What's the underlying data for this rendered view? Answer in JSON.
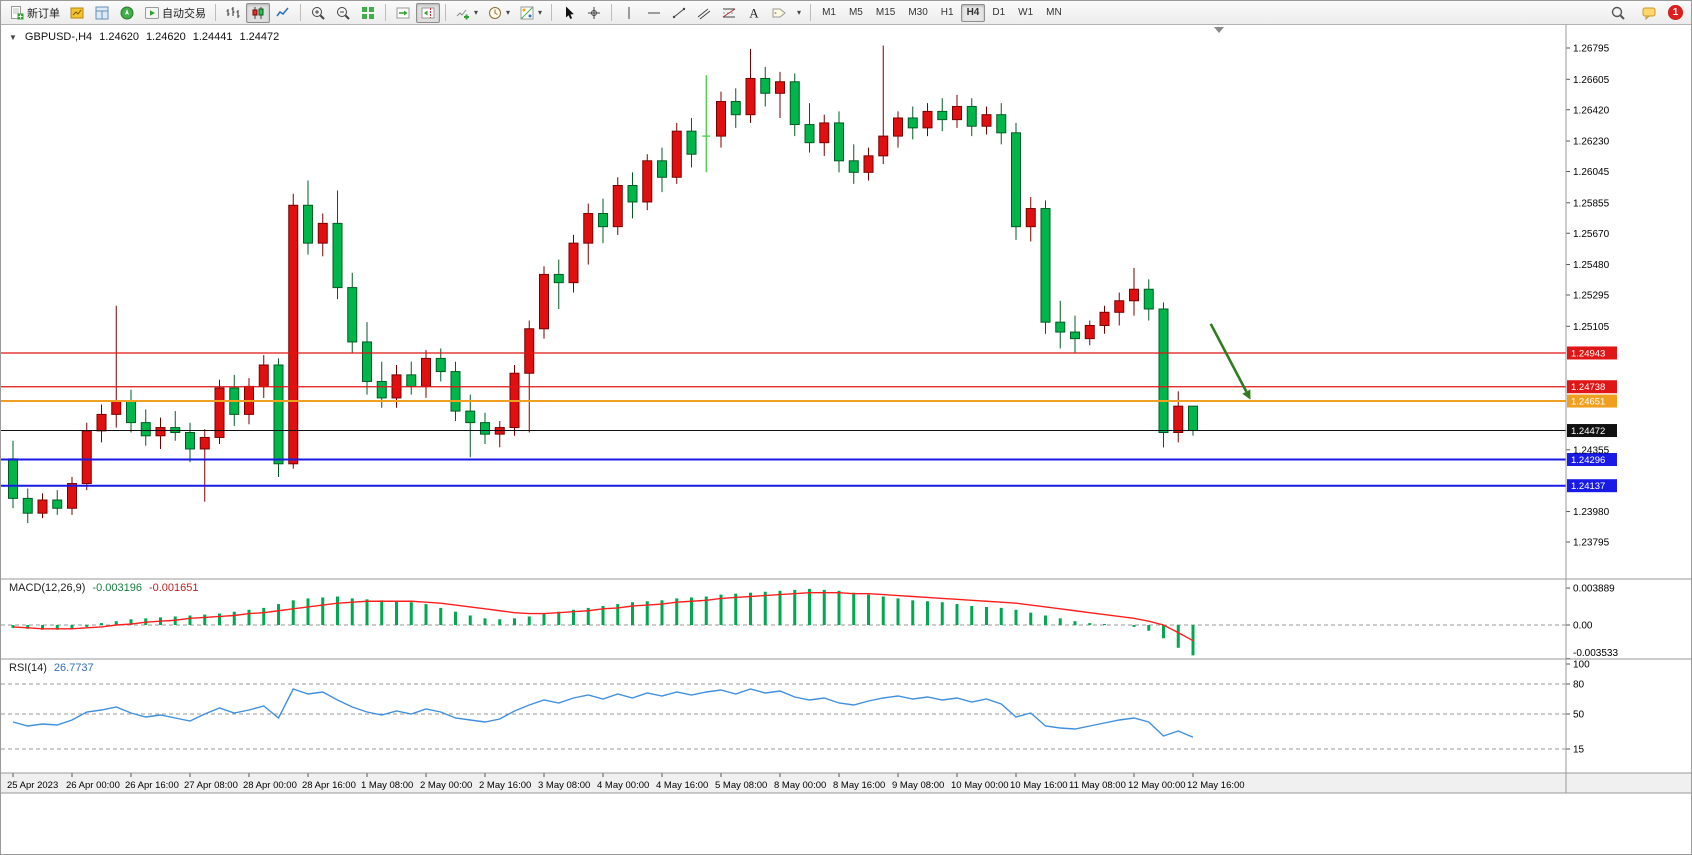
{
  "window": {
    "notification_count": "1"
  },
  "toolbar": {
    "groups": [
      {
        "items": [
          {
            "name": "new-order-button",
            "icon": "new-order",
            "label": "新订单"
          },
          {
            "name": "market-watch-button",
            "icon": "market-watch"
          },
          {
            "name": "data-window-button",
            "icon": "data-window"
          },
          {
            "name": "navigator-button",
            "icon": "navigator"
          },
          {
            "name": "autotrading-button",
            "icon": "autotrading",
            "label": "自动交易"
          }
        ]
      },
      {
        "items": [
          {
            "name": "bar-chart-button",
            "icon": "bar-chart"
          },
          {
            "name": "candlestick-chart-button",
            "icon": "candles",
            "active": true
          },
          {
            "name": "line-chart-button",
            "icon": "line-chart"
          }
        ]
      },
      {
        "items": [
          {
            "name": "zoom-in-button",
            "icon": "zoom-in"
          },
          {
            "name": "zoom-out-button",
            "icon": "zoom-out"
          },
          {
            "name": "tile-windows-button",
            "icon": "tile-windows"
          }
        ]
      },
      {
        "items": [
          {
            "name": "auto-scroll-button",
            "icon": "auto-scroll"
          },
          {
            "name": "chart-shift-button",
            "icon": "chart-shift",
            "active": true
          }
        ]
      },
      {
        "items": [
          {
            "name": "indicators-button",
            "icon": "indicators",
            "caret": true
          },
          {
            "name": "periods-button",
            "icon": "periods",
            "caret": true
          },
          {
            "name": "templates-button",
            "icon": "templates",
            "caret": true
          }
        ]
      },
      {
        "items": [
          {
            "name": "cursor-button",
            "icon": "cursor"
          },
          {
            "name": "crosshair-button",
            "icon": "crosshair"
          }
        ]
      },
      {
        "items": [
          {
            "name": "vertical-line-button",
            "icon": "v-line"
          },
          {
            "name": "horizontal-line-button",
            "icon": "h-line"
          },
          {
            "name": "trendline-button",
            "icon": "trend-line"
          },
          {
            "name": "channel-button",
            "icon": "channel"
          },
          {
            "name": "fibonacci-button",
            "icon": "fibonacci"
          },
          {
            "name": "text-button",
            "icon": "text"
          },
          {
            "name": "label-button",
            "icon": "label-tag"
          },
          {
            "name": "shapes-dropdown",
            "icon": "caret-only"
          }
        ]
      }
    ],
    "timeframes": [
      {
        "label": "M1"
      },
      {
        "label": "M5"
      },
      {
        "label": "M15"
      },
      {
        "label": "M30"
      },
      {
        "label": "H1"
      },
      {
        "label": "H4",
        "active": true
      },
      {
        "label": "D1"
      },
      {
        "label": "W1"
      },
      {
        "label": "MN"
      }
    ],
    "right": [
      {
        "name": "search-button",
        "icon": "search"
      },
      {
        "name": "chat-button",
        "icon": "chat"
      },
      {
        "name": "notifications-badge",
        "badge": "1"
      }
    ]
  },
  "chart": {
    "title": {
      "symbol_period": "GBPUSD-,H4",
      "open": "1.24620",
      "high": "1.24620",
      "low": "1.24441",
      "close": "1.24472"
    },
    "price_axis": {
      "ticks": [
        "1.26795",
        "1.26605",
        "1.26420",
        "1.26230",
        "1.26045",
        "1.25855",
        "1.25670",
        "1.25480",
        "1.25295",
        "1.25105",
        "1.24355",
        "1.23980",
        "1.23795"
      ]
    },
    "lines": [
      {
        "name": "resistance-line-1",
        "price": 1.24943,
        "label": "1.24943",
        "color": "#e01515",
        "width": 1.2
      },
      {
        "name": "resistance-line-2",
        "price": 1.24738,
        "label": "1.24738",
        "color": "#e01515",
        "width": 1.2
      },
      {
        "name": "support-line-orange",
        "price": 1.24651,
        "label": "1.24651",
        "color": "#f0a020",
        "width": 2
      },
      {
        "name": "current-price-line",
        "price": 1.24472,
        "label": "1.24472",
        "color": "#111111",
        "width": 1
      },
      {
        "name": "support-line-blue-1",
        "price": 1.24296,
        "label": "1.24296",
        "color": "#1a1ae6",
        "width": 2
      },
      {
        "name": "support-line-blue-2",
        "price": 1.24137,
        "label": "1.24137",
        "color": "#1a1ae6",
        "width": 2
      }
    ],
    "arrow_annotation": {
      "bar1": 81.2,
      "price1": 1.2512,
      "bar2": 83.9,
      "price2": 1.2466,
      "color": "#2f7d1e"
    },
    "time_axis": {
      "bars_per_label": 4,
      "labels": [
        "25 Apr 2023",
        "26 Apr 00:00",
        "26 Apr 16:00",
        "27 Apr 08:00",
        "28 Apr 00:00",
        "28 Apr 16:00",
        "1 May 08:00",
        "2 May 00:00",
        "2 May 16:00",
        "3 May 08:00",
        "4 May 00:00",
        "4 May 16:00",
        "5 May 08:00",
        "8 May 00:00",
        "8 May 16:00",
        "9 May 08:00",
        "10 May 00:00",
        "10 May 16:00",
        "11 May 08:00",
        "12 May 00:00",
        "12 May 16:00"
      ]
    }
  },
  "indicators": {
    "macd": {
      "label": "MACD(12,26,9)",
      "value_main": "-0.003196",
      "value_signal": "-0.001651",
      "axis": [
        "0.003889",
        "0.00",
        "-0.003533"
      ]
    },
    "rsi": {
      "label": "RSI(14)",
      "value": "26.7737",
      "axis": [
        "100",
        "80",
        "50",
        "15"
      ],
      "levels": [
        80,
        50,
        15
      ]
    }
  },
  "chart_data": {
    "type": "candlestick",
    "symbol": "GBPUSD-",
    "period": "H4",
    "price_range": [
      1.23795,
      1.26795
    ],
    "macd_range": [
      -0.003533,
      0.003889
    ],
    "colors": {
      "up": "#e01010",
      "up_edge": "#7a0000",
      "down": "#00b64a",
      "down_edge": "#005c24",
      "doji": "#32cd32",
      "macd_hist": "#00a84f",
      "macd_signal": "#ff1e1e",
      "rsi": "#4090e0"
    },
    "ohlc": [
      [
        1.243,
        1.2441,
        1.24,
        1.2406
      ],
      [
        1.2406,
        1.2412,
        1.2391,
        1.2397
      ],
      [
        1.2397,
        1.2409,
        1.2394,
        1.2405
      ],
      [
        1.2405,
        1.2411,
        1.2396,
        1.24
      ],
      [
        1.24,
        1.2419,
        1.2396,
        1.2415
      ],
      [
        1.2415,
        1.2452,
        1.2411,
        1.2447
      ],
      [
        1.2447,
        1.2463,
        1.244,
        1.2457
      ],
      [
        1.2457,
        1.2523,
        1.2449,
        1.2465
      ],
      [
        1.2465,
        1.2472,
        1.2446,
        1.2452
      ],
      [
        1.2452,
        1.246,
        1.2438,
        1.2444
      ],
      [
        1.2444,
        1.2455,
        1.2436,
        1.2449
      ],
      [
        1.2449,
        1.2459,
        1.2441,
        1.2446
      ],
      [
        1.2446,
        1.2452,
        1.2428,
        1.2436
      ],
      [
        1.2436,
        1.2448,
        1.2404,
        1.2443
      ],
      [
        1.2443,
        1.2478,
        1.2439,
        1.2473
      ],
      [
        1.2473,
        1.2481,
        1.245,
        1.2457
      ],
      [
        1.2457,
        1.2479,
        1.2451,
        1.2474
      ],
      [
        1.2474,
        1.2493,
        1.2467,
        1.2487
      ],
      [
        1.2487,
        1.2491,
        1.2419,
        1.2427
      ],
      [
        1.2427,
        1.2591,
        1.2424,
        1.2584
      ],
      [
        1.2584,
        1.2599,
        1.2554,
        1.2561
      ],
      [
        1.2561,
        1.2579,
        1.2553,
        1.2573
      ],
      [
        1.2573,
        1.2593,
        1.2527,
        1.2534
      ],
      [
        1.2534,
        1.2543,
        1.2494,
        1.2501
      ],
      [
        1.2501,
        1.2513,
        1.2469,
        1.2477
      ],
      [
        1.2477,
        1.2489,
        1.2461,
        1.2467
      ],
      [
        1.2467,
        1.2487,
        1.2461,
        1.2481
      ],
      [
        1.2481,
        1.2489,
        1.2469,
        1.2474
      ],
      [
        1.2474,
        1.2496,
        1.2467,
        1.2491
      ],
      [
        1.2491,
        1.2497,
        1.2477,
        1.2483
      ],
      [
        1.2483,
        1.2489,
        1.2453,
        1.2459
      ],
      [
        1.2459,
        1.2469,
        1.2431,
        1.2452
      ],
      [
        1.2452,
        1.2458,
        1.2439,
        1.2445
      ],
      [
        1.2445,
        1.2453,
        1.2437,
        1.2449
      ],
      [
        1.2449,
        1.2487,
        1.2444,
        1.2482
      ],
      [
        1.2482,
        1.2514,
        1.2446,
        1.2509
      ],
      [
        1.2509,
        1.2547,
        1.2503,
        1.2542
      ],
      [
        1.2542,
        1.2551,
        1.2521,
        1.2537
      ],
      [
        1.2537,
        1.2566,
        1.2531,
        1.2561
      ],
      [
        1.2561,
        1.2585,
        1.2548,
        1.2579
      ],
      [
        1.2579,
        1.2588,
        1.2561,
        1.2571
      ],
      [
        1.2571,
        1.2601,
        1.2566,
        1.2596
      ],
      [
        1.2596,
        1.2604,
        1.2576,
        1.2586
      ],
      [
        1.2586,
        1.2615,
        1.2581,
        1.2611
      ],
      [
        1.2611,
        1.2619,
        1.2592,
        1.2601
      ],
      [
        1.2601,
        1.2634,
        1.2597,
        1.2629
      ],
      [
        1.2629,
        1.2637,
        1.2607,
        1.2615
      ],
      [
        1.2626,
        1.2663,
        1.2604,
        1.2626
      ],
      [
        1.2626,
        1.2653,
        1.2619,
        1.2647
      ],
      [
        1.2647,
        1.2655,
        1.2631,
        1.2639
      ],
      [
        1.2639,
        1.2679,
        1.2634,
        1.2661
      ],
      [
        1.2661,
        1.2668,
        1.2644,
        1.2652
      ],
      [
        1.2652,
        1.2665,
        1.2637,
        1.2659
      ],
      [
        1.2659,
        1.2664,
        1.2626,
        1.2633
      ],
      [
        1.2633,
        1.2646,
        1.2616,
        1.2622
      ],
      [
        1.2622,
        1.2639,
        1.2614,
        1.2634
      ],
      [
        1.2634,
        1.2641,
        1.2604,
        1.2611
      ],
      [
        1.2611,
        1.2621,
        1.2597,
        1.2604
      ],
      [
        1.2604,
        1.2619,
        1.2599,
        1.2614
      ],
      [
        1.2614,
        1.2681,
        1.2609,
        1.2626
      ],
      [
        1.2626,
        1.2641,
        1.2619,
        1.2637
      ],
      [
        1.2637,
        1.2644,
        1.2624,
        1.2631
      ],
      [
        1.2631,
        1.2646,
        1.2626,
        1.2641
      ],
      [
        1.2641,
        1.2649,
        1.2629,
        1.2636
      ],
      [
        1.2636,
        1.2651,
        1.2631,
        1.2644
      ],
      [
        1.2644,
        1.2649,
        1.2626,
        1.2632
      ],
      [
        1.2632,
        1.2644,
        1.2627,
        1.2639
      ],
      [
        1.2639,
        1.2646,
        1.2621,
        1.2628
      ],
      [
        1.2628,
        1.2634,
        1.2563,
        1.2571
      ],
      [
        1.2571,
        1.2589,
        1.2562,
        1.2582
      ],
      [
        1.2582,
        1.2587,
        1.2506,
        1.2513
      ],
      [
        1.2513,
        1.2526,
        1.2497,
        1.2507
      ],
      [
        1.2507,
        1.2517,
        1.2494,
        1.2503
      ],
      [
        1.2503,
        1.2514,
        1.2499,
        1.2511
      ],
      [
        1.2511,
        1.2523,
        1.2506,
        1.2519
      ],
      [
        1.2519,
        1.2531,
        1.2511,
        1.2526
      ],
      [
        1.2526,
        1.2546,
        1.2517,
        1.2533
      ],
      [
        1.2533,
        1.2539,
        1.2514,
        1.2521
      ],
      [
        1.2521,
        1.2525,
        1.2437,
        1.2446
      ],
      [
        1.2446,
        1.2471,
        1.244,
        1.2462
      ],
      [
        1.2462,
        1.2462,
        1.24441,
        1.24472
      ]
    ],
    "macd_histogram": [
      -0.0003,
      -0.0004,
      -0.0005,
      -0.0005,
      -0.0004,
      -0.0002,
      0.0002,
      0.0004,
      0.0006,
      0.0007,
      0.0008,
      0.0009,
      0.001,
      0.0011,
      0.0012,
      0.0014,
      0.0016,
      0.0018,
      0.0022,
      0.0026,
      0.0028,
      0.0029,
      0.003,
      0.0028,
      0.0027,
      0.0026,
      0.0025,
      0.0024,
      0.0022,
      0.0018,
      0.0014,
      0.001,
      0.0007,
      0.0006,
      0.0007,
      0.0009,
      0.0012,
      0.0014,
      0.0016,
      0.0018,
      0.002,
      0.0022,
      0.0024,
      0.0025,
      0.0026,
      0.0028,
      0.0029,
      0.003,
      0.0032,
      0.0033,
      0.0034,
      0.0035,
      0.0036,
      0.0037,
      0.0038,
      0.0037,
      0.0036,
      0.0034,
      0.0032,
      0.003,
      0.0028,
      0.0026,
      0.0025,
      0.0024,
      0.0022,
      0.002,
      0.0019,
      0.0018,
      0.0016,
      0.0013,
      0.001,
      0.0007,
      0.0004,
      0.0002,
      0.0001,
      0.0,
      -0.0002,
      -0.0006,
      -0.0014,
      -0.0024,
      -0.003196
    ],
    "macd_signal": [
      -0.0002,
      -0.0003,
      -0.0004,
      -0.0004,
      -0.0004,
      -0.0003,
      -0.0002,
      0.0,
      0.0001,
      0.0003,
      0.0004,
      0.0005,
      0.0007,
      0.0008,
      0.0009,
      0.001,
      0.0012,
      0.0013,
      0.0015,
      0.0017,
      0.0019,
      0.0021,
      0.0023,
      0.0024,
      0.0025,
      0.0025,
      0.0025,
      0.0025,
      0.0024,
      0.0023,
      0.0021,
      0.0019,
      0.0017,
      0.0015,
      0.0013,
      0.0012,
      0.0012,
      0.0013,
      0.0014,
      0.0015,
      0.0017,
      0.0018,
      0.002,
      0.0021,
      0.0022,
      0.0024,
      0.0025,
      0.0026,
      0.0028,
      0.0029,
      0.003,
      0.0031,
      0.0032,
      0.0033,
      0.0034,
      0.0034,
      0.0034,
      0.0033,
      0.0033,
      0.0032,
      0.0031,
      0.003,
      0.0029,
      0.0028,
      0.0027,
      0.0026,
      0.0025,
      0.0024,
      0.0023,
      0.0021,
      0.0019,
      0.0017,
      0.0015,
      0.0013,
      0.0011,
      0.0009,
      0.0007,
      0.0004,
      0.0,
      -0.0008,
      -0.001651
    ],
    "rsi": [
      42,
      38,
      40,
      39,
      44,
      52,
      54,
      57,
      51,
      47,
      49,
      46,
      43,
      50,
      56,
      51,
      54,
      58,
      46,
      75,
      70,
      72,
      64,
      57,
      52,
      49,
      53,
      50,
      55,
      52,
      46,
      44,
      42,
      45,
      53,
      59,
      64,
      61,
      66,
      69,
      65,
      70,
      66,
      71,
      68,
      72,
      69,
      72,
      74,
      70,
      75,
      71,
      73,
      67,
      64,
      66,
      61,
      59,
      63,
      66,
      68,
      65,
      67,
      64,
      66,
      62,
      65,
      60,
      47,
      51,
      38,
      36,
      35,
      38,
      41,
      44,
      46,
      42,
      28,
      33,
      26.7737
    ]
  }
}
